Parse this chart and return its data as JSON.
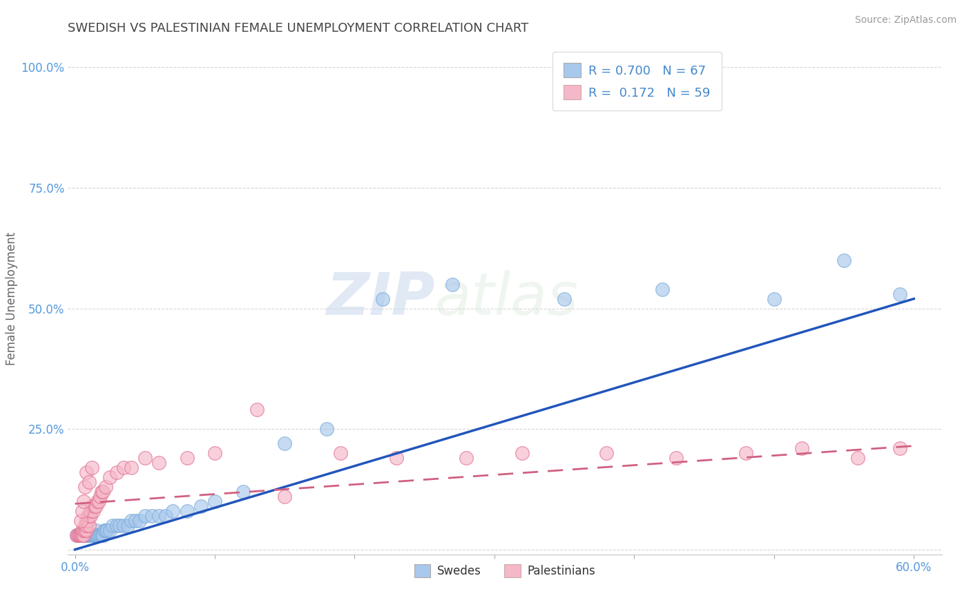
{
  "title": "SWEDISH VS PALESTINIAN FEMALE UNEMPLOYMENT CORRELATION CHART",
  "source": "Source: ZipAtlas.com",
  "ylabel": "Female Unemployment",
  "xlim": [
    -0.005,
    0.62
  ],
  "ylim": [
    -0.01,
    1.05
  ],
  "xticks": [
    0.0,
    0.1,
    0.2,
    0.3,
    0.4,
    0.5,
    0.6
  ],
  "xticklabels": [
    "0.0%",
    "",
    "",
    "",
    "",
    "",
    "60.0%"
  ],
  "yticks": [
    0.0,
    0.25,
    0.5,
    0.75,
    1.0
  ],
  "yticklabels": [
    "",
    "25.0%",
    "50.0%",
    "75.0%",
    "100.0%"
  ],
  "swedes_color": "#A8C8EC",
  "swedes_edge_color": "#7AAAD8",
  "palestinians_color": "#F5B8C8",
  "palestinians_edge_color": "#E07090",
  "swedes_line_color": "#2255BB",
  "palestinians_line_color": "#D06080",
  "legend_r_swedes": "0.700",
  "legend_n_swedes": "67",
  "legend_r_palestinians": "0.172",
  "legend_n_palestinians": "59",
  "watermark": "ZIPatlas",
  "background_color": "#FFFFFF",
  "swedes_x": [
    0.001,
    0.002,
    0.003,
    0.003,
    0.004,
    0.004,
    0.005,
    0.005,
    0.006,
    0.006,
    0.007,
    0.007,
    0.008,
    0.008,
    0.009,
    0.009,
    0.01,
    0.01,
    0.01,
    0.01,
    0.011,
    0.011,
    0.012,
    0.012,
    0.013,
    0.013,
    0.014,
    0.014,
    0.015,
    0.015,
    0.016,
    0.016,
    0.017,
    0.018,
    0.019,
    0.02,
    0.02,
    0.021,
    0.022,
    0.023,
    0.025,
    0.027,
    0.03,
    0.032,
    0.035,
    0.038,
    0.04,
    0.043,
    0.046,
    0.05,
    0.055,
    0.06,
    0.065,
    0.07,
    0.08,
    0.09,
    0.1,
    0.12,
    0.15,
    0.18,
    0.22,
    0.27,
    0.35,
    0.42,
    0.5,
    0.55,
    0.59
  ],
  "swedes_y": [
    0.03,
    0.03,
    0.03,
    0.03,
    0.03,
    0.03,
    0.03,
    0.03,
    0.03,
    0.03,
    0.03,
    0.03,
    0.03,
    0.03,
    0.03,
    0.03,
    0.03,
    0.03,
    0.03,
    0.03,
    0.03,
    0.03,
    0.03,
    0.03,
    0.03,
    0.03,
    0.03,
    0.03,
    0.03,
    0.04,
    0.03,
    0.03,
    0.03,
    0.03,
    0.03,
    0.03,
    0.03,
    0.04,
    0.04,
    0.04,
    0.04,
    0.05,
    0.05,
    0.05,
    0.05,
    0.05,
    0.06,
    0.06,
    0.06,
    0.07,
    0.07,
    0.07,
    0.07,
    0.08,
    0.08,
    0.09,
    0.1,
    0.12,
    0.22,
    0.25,
    0.52,
    0.55,
    0.52,
    0.54,
    0.52,
    0.6,
    0.53
  ],
  "palestinians_x": [
    0.001,
    0.002,
    0.003,
    0.003,
    0.004,
    0.004,
    0.005,
    0.005,
    0.005,
    0.006,
    0.006,
    0.007,
    0.007,
    0.008,
    0.008,
    0.008,
    0.009,
    0.009,
    0.01,
    0.01,
    0.011,
    0.011,
    0.012,
    0.013,
    0.014,
    0.015,
    0.016,
    0.017,
    0.018,
    0.019,
    0.02,
    0.022,
    0.025,
    0.03,
    0.035,
    0.04,
    0.05,
    0.06,
    0.08,
    0.1,
    0.13,
    0.15,
    0.19,
    0.23,
    0.28,
    0.32,
    0.38,
    0.43,
    0.48,
    0.52,
    0.56,
    0.59,
    0.004,
    0.005,
    0.006,
    0.007,
    0.008,
    0.01,
    0.012
  ],
  "palestinians_y": [
    0.03,
    0.03,
    0.03,
    0.03,
    0.03,
    0.03,
    0.03,
    0.03,
    0.04,
    0.03,
    0.04,
    0.04,
    0.05,
    0.04,
    0.05,
    0.06,
    0.06,
    0.07,
    0.05,
    0.07,
    0.07,
    0.08,
    0.09,
    0.08,
    0.09,
    0.09,
    0.1,
    0.1,
    0.11,
    0.12,
    0.12,
    0.13,
    0.15,
    0.16,
    0.17,
    0.17,
    0.19,
    0.18,
    0.19,
    0.2,
    0.29,
    0.11,
    0.2,
    0.19,
    0.19,
    0.2,
    0.2,
    0.19,
    0.2,
    0.21,
    0.19,
    0.21,
    0.06,
    0.08,
    0.1,
    0.13,
    0.16,
    0.14,
    0.17
  ],
  "swedes_reg": [
    0.0,
    0.6,
    0.0,
    0.52
  ],
  "palestinians_reg": [
    0.0,
    0.6,
    0.095,
    0.215
  ]
}
